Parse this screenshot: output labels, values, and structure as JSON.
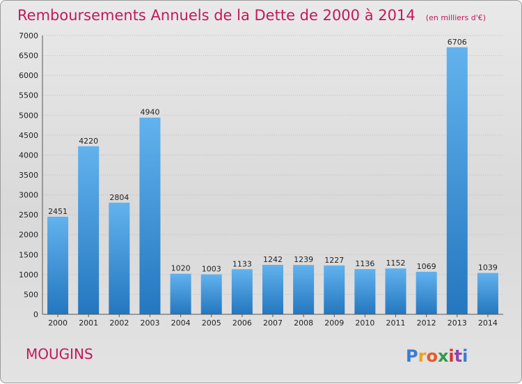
{
  "chart_data": {
    "type": "bar",
    "title": "Remboursements Annuels de la Dette de 2000 à 2014",
    "unit": "(en milliers d'€)",
    "categories": [
      "2000",
      "2001",
      "2002",
      "2003",
      "2004",
      "2005",
      "2006",
      "2007",
      "2008",
      "2009",
      "2010",
      "2011",
      "2012",
      "2013",
      "2014"
    ],
    "values": [
      2451,
      4220,
      2804,
      4940,
      1020,
      1003,
      1133,
      1242,
      1239,
      1227,
      1136,
      1152,
      1069,
      6706,
      1039
    ],
    "ylim": [
      0,
      7000
    ],
    "yticks": [
      0,
      500,
      1000,
      1500,
      2000,
      2500,
      3000,
      3500,
      4000,
      4500,
      5000,
      5500,
      6000,
      6500,
      7000
    ],
    "grid": true,
    "bar_color": "#3c8fd6"
  },
  "footer": {
    "commune": "MOUGINS",
    "brand_letters": [
      "P",
      "r",
      "o",
      "x",
      "i",
      "t",
      "i"
    ],
    "brand_colors": [
      "#3a7bd5",
      "#f0a020",
      "#e85a2a",
      "#2b9c4a",
      "#d9342b",
      "#8e44ad",
      "#3a7bd5"
    ]
  }
}
